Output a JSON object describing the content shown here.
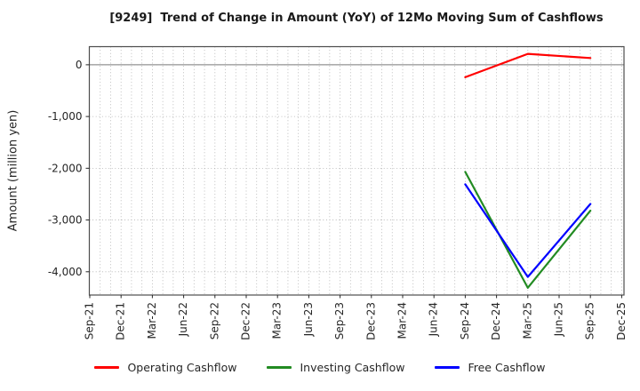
{
  "window": {
    "title": "[9249]  Trend of Change in Amount (YoY) of 12Mo Moving Sum of Cashflows"
  },
  "chart_data": {
    "type": "line",
    "title": "[9249]  Trend of Change in Amount (YoY) of 12Mo Moving Sum of Cashflows",
    "xlabel": "",
    "ylabel": "Amount (million yen)",
    "x_tick_labels": [
      "Sep-21",
      "Dec-21",
      "Mar-22",
      "Jun-22",
      "Sep-22",
      "Dec-22",
      "Mar-23",
      "Jun-23",
      "Sep-23",
      "Dec-23",
      "Mar-24",
      "Jun-24",
      "Sep-24",
      "Dec-24",
      "Mar-25",
      "Jun-25",
      "Sep-25",
      "Dec-25"
    ],
    "y_tick_labels": [
      "0",
      "-1,000",
      "-2,000",
      "-3,000",
      "-4,000"
    ],
    "y_tick_values": [
      0,
      -1000,
      -2000,
      -3000,
      -4000
    ],
    "ylim": [
      -4450,
      350
    ],
    "grid": {
      "horizontal": "major dotted",
      "vertical": "monthly dotted minors",
      "zero_line": "solid"
    },
    "legend_position": "bottom",
    "x": [
      "Sep-24",
      "Mar-25",
      "Sep-25"
    ],
    "x_indices": [
      12,
      14,
      16
    ],
    "months_per_tick": 3,
    "series": [
      {
        "name": "Operating Cashflow",
        "color": "#ff0000",
        "values": [
          -240,
          210,
          130
        ]
      },
      {
        "name": "Investing Cashflow",
        "color": "#228b22",
        "values": [
          -2070,
          -4310,
          -2820
        ]
      },
      {
        "name": "Free Cashflow",
        "color": "#0000ff",
        "values": [
          -2310,
          -4100,
          -2690
        ]
      }
    ]
  },
  "colors": {
    "plot_border": "#4d4d4d",
    "gridline": "#b0b0b0",
    "zero_line": "#7a7a7a",
    "tick_mark": "#262626",
    "background": "#ffffff"
  }
}
